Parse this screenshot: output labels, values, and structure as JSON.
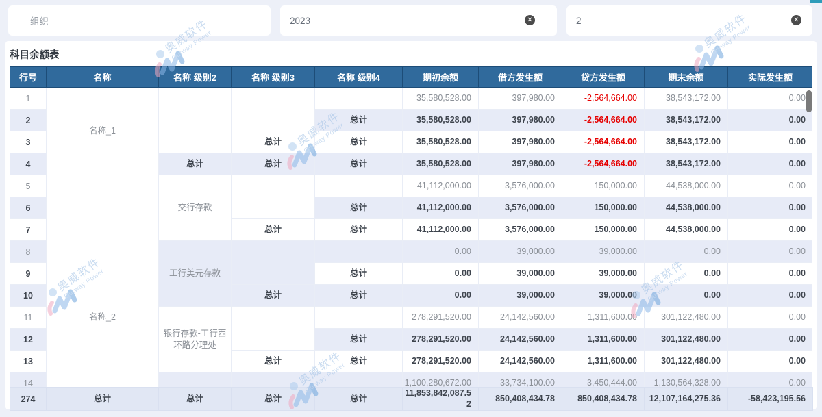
{
  "filters": [
    {
      "value": "组织",
      "is_placeholder": true,
      "clearable": false
    },
    {
      "value": "2023",
      "is_placeholder": false,
      "clearable": true
    },
    {
      "value": "2",
      "is_placeholder": false,
      "clearable": true
    }
  ],
  "clear_icon_glyph": "✕",
  "table": {
    "title": "科目余额表",
    "columns": [
      "行号",
      "名称",
      "名称 级别2",
      "名称 级别3",
      "名称 级别4",
      "期初余额",
      "借方发生额",
      "贷方发生额",
      "期末余额",
      "实际发生额"
    ],
    "rows": [
      {
        "num": "1",
        "cells": [
          {
            "t": "名称_1",
            "rs": 4
          },
          {
            "t": "",
            "rs": 3
          },
          {
            "t": "",
            "rs": 2
          },
          {
            "t": ""
          }
        ],
        "values": [
          "35,580,528.00",
          "397,980.00",
          "-2,564,664.00",
          "38,543,172.00",
          "0.00"
        ],
        "bold": false,
        "red_col": 2
      },
      {
        "num": "2",
        "cells": [
          {
            "t": "总计"
          }
        ],
        "values": [
          "35,580,528.00",
          "397,980.00",
          "-2,564,664.00",
          "38,543,172.00",
          "0.00"
        ],
        "bold": true,
        "red_col": 2
      },
      {
        "num": "3",
        "cells": [
          {
            "t": "总计"
          },
          {
            "t": "总计"
          }
        ],
        "values": [
          "35,580,528.00",
          "397,980.00",
          "-2,564,664.00",
          "38,543,172.00",
          "0.00"
        ],
        "bold": true,
        "red_col": 2
      },
      {
        "num": "4",
        "cells": [
          {
            "t": "总计"
          },
          {
            "t": "总计"
          },
          {
            "t": "总计"
          }
        ],
        "values": [
          "35,580,528.00",
          "397,980.00",
          "-2,564,664.00",
          "38,543,172.00",
          "0.00"
        ],
        "bold": true,
        "red_col": 2
      },
      {
        "num": "5",
        "cells": [
          {
            "t": "名称_2",
            "rs": 10,
            "vlow": true
          },
          {
            "t": "交行存款",
            "rs": 3
          },
          {
            "t": "",
            "rs": 2
          },
          {
            "t": ""
          }
        ],
        "values": [
          "41,112,000.00",
          "3,576,000.00",
          "150,000.00",
          "44,538,000.00",
          "0.00"
        ],
        "bold": false
      },
      {
        "num": "6",
        "cells": [
          {
            "t": "总计"
          }
        ],
        "values": [
          "41,112,000.00",
          "3,576,000.00",
          "150,000.00",
          "44,538,000.00",
          "0.00"
        ],
        "bold": true
      },
      {
        "num": "7",
        "cells": [
          {
            "t": "总计"
          },
          {
            "t": "总计"
          }
        ],
        "values": [
          "41,112,000.00",
          "3,576,000.00",
          "150,000.00",
          "44,538,000.00",
          "0.00"
        ],
        "bold": true
      },
      {
        "num": "8",
        "cells": [
          {
            "t": "工行美元存款",
            "rs": 3
          },
          {
            "t": "",
            "rs": 2
          },
          {
            "t": ""
          }
        ],
        "values": [
          "0.00",
          "39,000.00",
          "39,000.00",
          "0.00",
          "0.00"
        ],
        "bold": false
      },
      {
        "num": "9",
        "cells": [
          {
            "t": "总计"
          }
        ],
        "values": [
          "0.00",
          "39,000.00",
          "39,000.00",
          "0.00",
          "0.00"
        ],
        "bold": true
      },
      {
        "num": "10",
        "cells": [
          {
            "t": "总计"
          },
          {
            "t": "总计"
          }
        ],
        "values": [
          "0.00",
          "39,000.00",
          "39,000.00",
          "0.00",
          "0.00"
        ],
        "bold": true
      },
      {
        "num": "11",
        "cells": [
          {
            "t": "银行存款-工行西环路分理处",
            "rs": 3
          },
          {
            "t": "",
            "rs": 2
          },
          {
            "t": ""
          }
        ],
        "values": [
          "278,291,520.00",
          "24,142,560.00",
          "1,311,600.00",
          "301,122,480.00",
          "0.00"
        ],
        "bold": false
      },
      {
        "num": "12",
        "cells": [
          {
            "t": "总计"
          }
        ],
        "values": [
          "278,291,520.00",
          "24,142,560.00",
          "1,311,600.00",
          "301,122,480.00",
          "0.00"
        ],
        "bold": true
      },
      {
        "num": "13",
        "cells": [
          {
            "t": "总计"
          },
          {
            "t": "总计"
          }
        ],
        "values": [
          "278,291,520.00",
          "24,142,560.00",
          "1,311,600.00",
          "301,122,480.00",
          "0.00"
        ],
        "bold": true
      },
      {
        "num": "14",
        "cells": [
          {
            "t": ""
          },
          {
            "t": ""
          },
          {
            "t": ""
          }
        ],
        "values": [
          "1,100,280,672.00",
          "33,734,100.00",
          "3,450,444.00",
          "1,130,564,328.00",
          "0.00"
        ],
        "bold": false
      }
    ],
    "total_row": {
      "num": "274",
      "cells": [
        "总计",
        "总计",
        "总计",
        "总计"
      ],
      "values": [
        "11,853,842,087.52",
        "850,408,434.78",
        "850,408,434.78",
        "12,107,164,275.36",
        "-58,423,195.56"
      ],
      "red_col": 4
    }
  },
  "watermark": {
    "line1": "奥威软件",
    "line2": "Ourway Power"
  },
  "colors": {
    "header_bg": "#306a9c",
    "header_border": "#1d4d78",
    "negative": "#e60000",
    "row_shade": "#e7ebf7",
    "total_shade": "#e1e7f4",
    "text_muted": "#8b9097",
    "text_strong": "#3e444d",
    "watermark": "#9fc0e5",
    "page_bg": "#edf0f8",
    "scrollbar": "#7a7a7a",
    "accent_corner": "#2e9cba"
  }
}
